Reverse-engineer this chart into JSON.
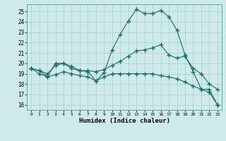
{
  "xlabel": "Humidex (Indice chaleur)",
  "bg_color": "#ceeaea",
  "grid_color": "#a8cccc",
  "line_color": "#1a6e64",
  "xlim": [
    -0.5,
    23.5
  ],
  "ylim": [
    15.5,
    25.7
  ],
  "xticks": [
    0,
    1,
    2,
    3,
    4,
    5,
    6,
    7,
    8,
    9,
    10,
    11,
    12,
    13,
    14,
    15,
    16,
    17,
    18,
    19,
    20,
    21,
    22,
    23
  ],
  "yticks": [
    16,
    17,
    18,
    19,
    20,
    21,
    22,
    23,
    24,
    25
  ],
  "series1_x": [
    0,
    1,
    2,
    3,
    4,
    5,
    6,
    7,
    8,
    9,
    10,
    11,
    12,
    13,
    14,
    15,
    16,
    17,
    18,
    19,
    20,
    21,
    22,
    23
  ],
  "series1_y": [
    19.5,
    19.3,
    19.0,
    19.8,
    20.0,
    19.7,
    19.3,
    19.2,
    18.3,
    19.1,
    21.3,
    22.8,
    24.1,
    25.2,
    24.8,
    24.8,
    25.1,
    24.5,
    23.2,
    20.8,
    19.2,
    17.5,
    17.5,
    16.0
  ],
  "series2_x": [
    0,
    1,
    2,
    3,
    4,
    5,
    6,
    7,
    8,
    9,
    10,
    11,
    12,
    13,
    14,
    15,
    16,
    17,
    18,
    19,
    20,
    21,
    22,
    23
  ],
  "series2_y": [
    19.5,
    19.3,
    18.7,
    20.0,
    20.0,
    19.5,
    19.3,
    19.3,
    19.2,
    19.4,
    19.8,
    20.2,
    20.7,
    21.2,
    21.3,
    21.5,
    21.8,
    20.8,
    20.5,
    20.7,
    19.5,
    19.0,
    18.0,
    17.5
  ],
  "series3_x": [
    0,
    1,
    2,
    3,
    4,
    5,
    6,
    7,
    8,
    9,
    10,
    11,
    12,
    13,
    14,
    15,
    16,
    17,
    18,
    19,
    20,
    21,
    22,
    23
  ],
  "series3_y": [
    19.5,
    19.0,
    18.7,
    18.9,
    19.2,
    19.0,
    18.8,
    18.7,
    18.3,
    18.7,
    19.0,
    19.0,
    19.0,
    19.0,
    19.0,
    19.0,
    18.8,
    18.7,
    18.5,
    18.2,
    17.8,
    17.5,
    17.2,
    16.0
  ]
}
